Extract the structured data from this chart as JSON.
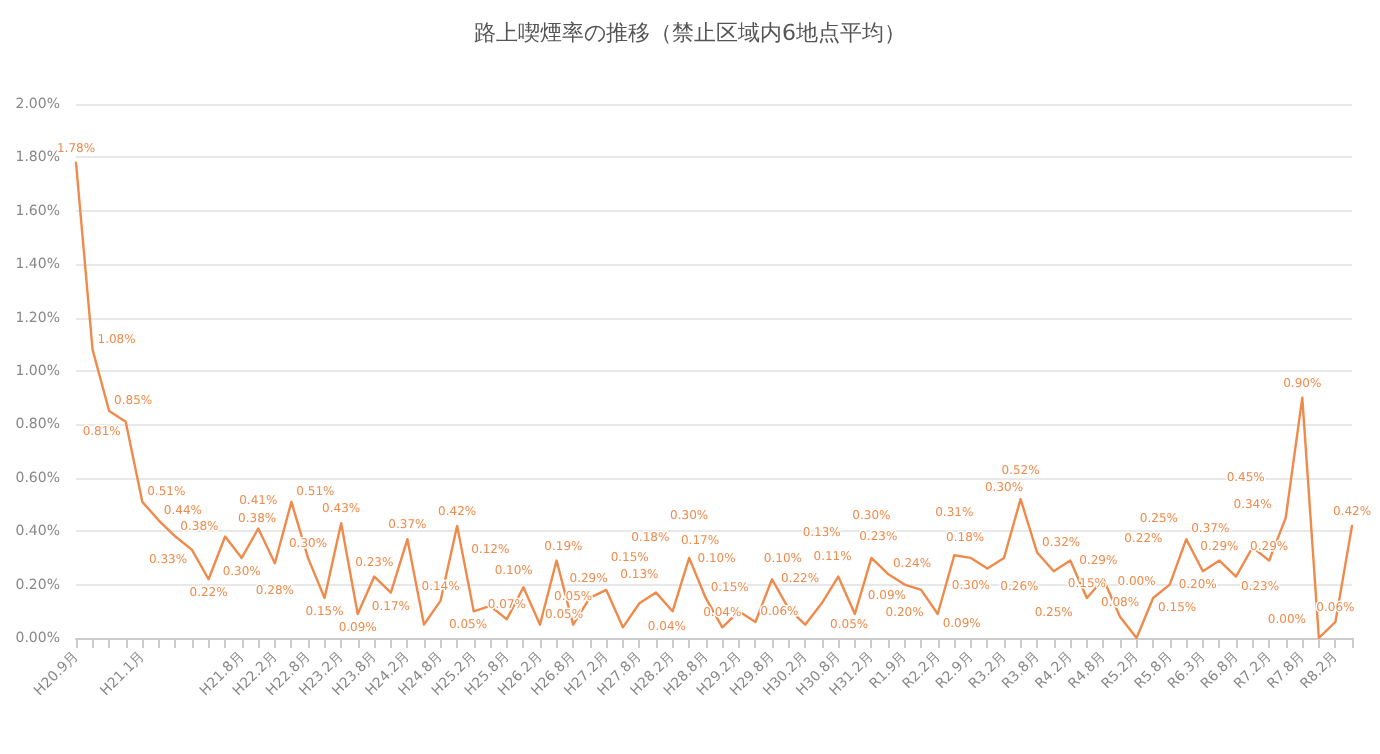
{
  "chart_data": {
    "type": "line",
    "title": "路上喫煙率の推移（禁止区域内6地点平均）",
    "categories": [
      "H20.9月",
      null,
      null,
      null,
      "H21.1月",
      null,
      null,
      null,
      null,
      null,
      "H21.8月",
      null,
      "H22.2月",
      null,
      "H22.8月",
      null,
      "H23.2月",
      null,
      "H23.8月",
      null,
      "H24.2月",
      null,
      "H24.8月",
      null,
      "H25.2月",
      null,
      "H25.8月",
      null,
      "H26.2月",
      null,
      "H26.8月",
      null,
      "H27.2月",
      null,
      "H27.8月",
      null,
      "H28.2月",
      null,
      "H28.8月",
      null,
      "H29.2月",
      null,
      "H29.8月",
      null,
      "H30.2月",
      null,
      "H30.8月",
      null,
      "H31.2月",
      null,
      "R1.9月",
      null,
      "R2.2月",
      null,
      "R2.9月",
      null,
      "R3.2月",
      null,
      "R3.8月",
      null,
      "R4.2月",
      null,
      "R4.8月",
      null,
      "R5.2月",
      null,
      "R5.8月",
      null,
      "R6.3月",
      null,
      "R6.8月",
      null,
      "R7.2月",
      null,
      "R7.8月",
      null,
      "R8.2月",
      null
    ],
    "series": [
      {
        "color": "#f08a4b",
        "values": [
          1.78,
          1.08,
          0.85,
          0.81,
          0.51,
          0.44,
          0.38,
          0.33,
          0.22,
          0.38,
          0.3,
          0.41,
          0.28,
          0.51,
          0.3,
          0.15,
          0.43,
          0.09,
          0.23,
          0.17,
          0.37,
          0.05,
          0.14,
          0.42,
          0.1,
          0.12,
          0.07,
          0.19,
          0.05,
          0.29,
          0.05,
          0.15,
          0.18,
          0.04,
          0.13,
          0.17,
          0.1,
          0.3,
          0.15,
          0.04,
          0.1,
          0.06,
          0.22,
          0.11,
          0.05,
          0.13,
          0.23,
          0.09,
          0.3,
          0.24,
          0.2,
          0.18,
          0.09,
          0.31,
          0.3,
          0.26,
          0.3,
          0.52,
          0.32,
          0.25,
          0.29,
          0.15,
          0.22,
          0.08,
          0.0,
          0.15,
          0.2,
          0.37,
          0.25,
          0.29,
          0.23,
          0.34,
          0.29,
          0.45,
          0.9,
          0.0,
          0.06,
          0.42
        ]
      }
    ],
    "ylim": [
      0,
      2
    ],
    "yticks": [
      {
        "value": 0,
        "label": "0.00%"
      },
      {
        "value": 0.2,
        "label": "0.20%"
      },
      {
        "value": 0.4,
        "label": "0.40%"
      },
      {
        "value": 0.6,
        "label": "0.60%"
      },
      {
        "value": 0.8,
        "label": "0.80%"
      },
      {
        "value": 1,
        "label": "1.00%"
      },
      {
        "value": 1.2,
        "label": "1.20%"
      },
      {
        "value": 1.4,
        "label": "1.40%"
      },
      {
        "value": 1.6,
        "label": "1.60%"
      },
      {
        "value": 1.8,
        "label": "1.80%"
      },
      {
        "value": 2,
        "label": "2.00%"
      }
    ],
    "value_labels": [
      "1.78%",
      "1.08%",
      "0.85%",
      "0.81%",
      "0.51%",
      "0.44%",
      "0.38%",
      "0.33%",
      "0.22%",
      "0.38%",
      "0.30%",
      "0.41%",
      "0.28%",
      "0.51%",
      "0.30%",
      "0.15%",
      "0.43%",
      "0.09%",
      "0.23%",
      "0.17%",
      "0.37%",
      "0.05%",
      "0.14%",
      "0.42%",
      "0.10%",
      "0.12%",
      "0.07%",
      "0.19%",
      "0.05%",
      "0.29%",
      "0.05%",
      "0.15%",
      "0.18%",
      "0.04%",
      "0.13%",
      "0.17%",
      "0.10%",
      "0.30%",
      "0.15%",
      "0.04%",
      "0.10%",
      "0.06%",
      "0.22%",
      "0.11%",
      "0.05%",
      "0.13%",
      "0.23%",
      "0.09%",
      "0.30%",
      "0.24%",
      "0.20%",
      "0.18%",
      "0.09%",
      "0.31%",
      "0.30%",
      "0.26%",
      "0.30%",
      "0.52%",
      "0.32%",
      "0.25%",
      "0.29%",
      "0.15%",
      "0.22%",
      "0.08%",
      "0.00%",
      "0.15%",
      "0.20%",
      "0.37%",
      "0.25%",
      "0.29%",
      "0.23%",
      "0.34%",
      "0.29%",
      "0.45%",
      "0.90%",
      "0.00%",
      "0.06%",
      "0.42%"
    ],
    "grid": "y",
    "marker": "none",
    "line_style": "solid"
  }
}
